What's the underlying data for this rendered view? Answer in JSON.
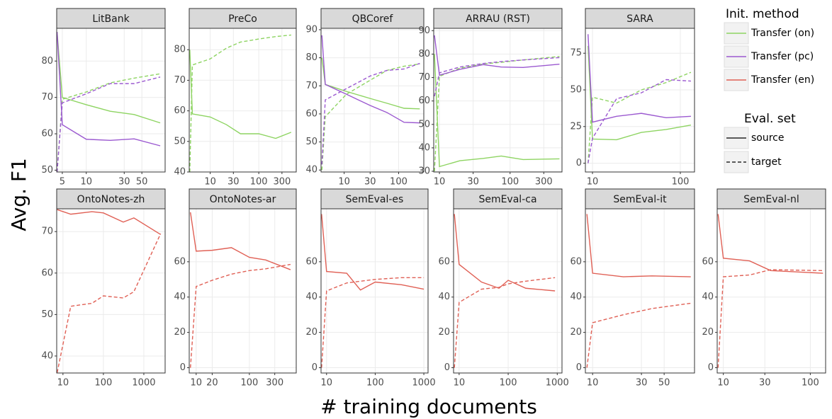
{
  "figure": {
    "ylabel": "Avg. F1",
    "xlabel": "# training documents",
    "legend": {
      "title": "Init. method",
      "items": [
        {
          "name": "Transfer (on)",
          "color": "#8ed462"
        },
        {
          "name": "Transfer (pc)",
          "color": "#9b59d0"
        },
        {
          "name": "Transfer (en)",
          "color": "#e06055"
        }
      ]
    },
    "legend2": {
      "title": "Eval. set",
      "items": [
        {
          "name": "source",
          "dashed": false
        },
        {
          "name": "target",
          "dashed": true
        }
      ]
    }
  },
  "chart_data": [
    {
      "type": "line",
      "title": "LitBank",
      "xlog": true,
      "xlim": [
        4.25,
        98
      ],
      "xticks": [
        5,
        10,
        30,
        50
      ],
      "ylim": [
        49.5,
        89
      ],
      "yticks": [
        50,
        60,
        70,
        80
      ],
      "grid": true,
      "x": [
        4.3,
        5,
        10,
        20,
        40,
        85
      ],
      "series": [
        {
          "color": "#8ed462",
          "dashed": false,
          "values": [
            88,
            70,
            68,
            66.2,
            65.3,
            63
          ]
        },
        {
          "color": "#8ed462",
          "dashed": true,
          "values": [
            49.5,
            69.5,
            71.5,
            74,
            75.3,
            76.5
          ]
        },
        {
          "color": "#9b59d0",
          "dashed": false,
          "values": [
            88,
            62.5,
            58.5,
            58.2,
            58.6,
            56.7
          ]
        },
        {
          "color": "#9b59d0",
          "dashed": true,
          "values": [
            49.5,
            68.5,
            71,
            73.8,
            73.8,
            75.6
          ]
        }
      ]
    },
    {
      "type": "line",
      "title": "PreCo",
      "xlog": true,
      "xlim": [
        3.7,
        590
      ],
      "xticks": [
        10,
        30,
        100,
        300
      ],
      "ylim": [
        40,
        87
      ],
      "yticks": [
        40,
        50,
        60,
        70,
        80
      ],
      "grid": true,
      "x": [
        3.8,
        4.3,
        10,
        21.5,
        42,
        100,
        223,
        464
      ],
      "series": [
        {
          "color": "#8ed462",
          "dashed": false,
          "values": [
            80,
            59,
            58,
            55.5,
            52.5,
            52.5,
            51,
            53
          ]
        },
        {
          "color": "#8ed462",
          "dashed": true,
          "values": [
            40,
            75,
            77,
            80.5,
            82.5,
            83.5,
            84.3,
            84.8
          ]
        }
      ]
    },
    {
      "type": "line",
      "title": "QBCoref",
      "xlog": true,
      "xlim": [
        3.76,
        290
      ],
      "xticks": [
        10,
        30,
        100
      ],
      "ylim": [
        39.3,
        90.5
      ],
      "yticks": [
        40,
        50,
        60,
        70,
        80,
        90
      ],
      "grid": true,
      "x": [
        3.9,
        4.5,
        11,
        30,
        61,
        126,
        245
      ],
      "series": [
        {
          "color": "#8ed462",
          "dashed": false,
          "values": [
            80,
            70.5,
            68,
            65.5,
            63.8,
            62,
            61.8
          ]
        },
        {
          "color": "#8ed462",
          "dashed": true,
          "values": [
            40,
            59,
            67,
            72,
            75.5,
            77,
            77.8
          ]
        },
        {
          "color": "#9b59d0",
          "dashed": false,
          "values": [
            88,
            70.5,
            67,
            63,
            60.5,
            57,
            56.8
          ]
        },
        {
          "color": "#9b59d0",
          "dashed": true,
          "values": [
            42,
            65,
            69,
            73.5,
            75.5,
            76,
            78
          ]
        }
      ]
    },
    {
      "type": "line",
      "title": "ARRAU (RST)",
      "xlog": true,
      "xlim": [
        8.3,
        543
      ],
      "xticks": [
        10,
        30,
        100,
        300
      ],
      "ylim": [
        29.7,
        91
      ],
      "yticks": [
        30,
        40,
        50,
        60,
        70,
        80,
        90
      ],
      "grid": true,
      "x": [
        8.5,
        10,
        19.5,
        41.6,
        75,
        153,
        500
      ],
      "series": [
        {
          "color": "#8ed462",
          "dashed": false,
          "values": [
            80,
            32,
            34.5,
            35.5,
            36.5,
            35,
            35.3
          ]
        },
        {
          "color": "#8ed462",
          "dashed": true,
          "values": [
            30,
            70.5,
            74,
            75.8,
            76.5,
            77.5,
            79
          ]
        },
        {
          "color": "#9b59d0",
          "dashed": false,
          "values": [
            88,
            71,
            73.5,
            75.5,
            74.5,
            74.3,
            75.7
          ]
        },
        {
          "color": "#9b59d0",
          "dashed": true,
          "values": [
            62,
            72,
            74.5,
            76,
            76.8,
            77.5,
            78.5
          ]
        }
      ]
    },
    {
      "type": "line",
      "title": "SARA",
      "xlog": true,
      "xlim": [
        8.3,
        145
      ],
      "xticks": [
        10,
        100
      ],
      "ylim": [
        -6,
        92
      ],
      "yticks": [
        0,
        25,
        50,
        75
      ],
      "grid": true,
      "x": [
        8.9,
        10,
        18.8,
        36,
        69,
        132
      ],
      "series": [
        {
          "color": "#8ed462",
          "dashed": false,
          "values": [
            80,
            16.5,
            16,
            21,
            23,
            26
          ]
        },
        {
          "color": "#8ed462",
          "dashed": true,
          "values": [
            0,
            45,
            41,
            50,
            55,
            62
          ]
        },
        {
          "color": "#9b59d0",
          "dashed": false,
          "values": [
            88,
            28,
            32,
            34,
            31,
            32
          ]
        },
        {
          "color": "#9b59d0",
          "dashed": true,
          "values": [
            0,
            17,
            44,
            48,
            57,
            56
          ]
        }
      ]
    },
    {
      "type": "line",
      "title": "OntoNotes-zh",
      "xlog": true,
      "xlim": [
        7,
        3360
      ],
      "xticks": [
        10,
        100,
        1000
      ],
      "ylim": [
        35.9,
        75.5
      ],
      "yticks": [
        40,
        50,
        60,
        70
      ],
      "grid": true,
      "x": [
        7.2,
        15.6,
        52,
        100,
        310,
        567,
        2600
      ],
      "series": [
        {
          "color": "#e06055",
          "dashed": false,
          "values": [
            75.3,
            74.2,
            74.8,
            74.5,
            72.3,
            73.3,
            69.3
          ]
        },
        {
          "color": "#e06055",
          "dashed": true,
          "values": [
            36,
            52,
            52.7,
            54.5,
            54,
            55.5,
            69.5
          ]
        }
      ]
    },
    {
      "type": "line",
      "title": "OntoNotes-ar",
      "xlog": true,
      "xlim": [
        7.4,
        760
      ],
      "xticks": [
        10,
        20,
        100,
        300
      ],
      "ylim": [
        -3,
        90
      ],
      "yticks": [
        0,
        20,
        40,
        60
      ],
      "grid": true,
      "x": [
        7.8,
        10,
        20,
        46,
        100,
        203,
        593
      ],
      "series": [
        {
          "color": "#e06055",
          "dashed": false,
          "values": [
            88,
            66,
            66.5,
            68,
            62.5,
            61,
            55.5
          ]
        },
        {
          "color": "#e06055",
          "dashed": true,
          "values": [
            0,
            46,
            49.5,
            53,
            55,
            56,
            58.5
          ]
        }
      ]
    },
    {
      "type": "line",
      "title": "SemEval-es",
      "xlog": true,
      "xlim": [
        7.7,
        1220
      ],
      "xticks": [
        10,
        100,
        1000
      ],
      "ylim": [
        -3,
        90
      ],
      "yticks": [
        0,
        20,
        40,
        60
      ],
      "grid": true,
      "x": [
        7.9,
        10,
        26,
        49.7,
        100,
        348,
        1000
      ],
      "series": [
        {
          "color": "#e06055",
          "dashed": false,
          "values": [
            87,
            54.5,
            53.5,
            44,
            48.5,
            47,
            44.5
          ]
        },
        {
          "color": "#e06055",
          "dashed": true,
          "values": [
            0,
            43.5,
            48,
            49,
            50,
            51,
            51
          ]
        }
      ]
    },
    {
      "type": "line",
      "title": "SemEval-ca",
      "xlog": true,
      "xlim": [
        7.7,
        1250
      ],
      "xticks": [
        10,
        100,
        1000
      ],
      "ylim": [
        -3,
        90
      ],
      "yticks": [
        0,
        20,
        40,
        60
      ],
      "grid": true,
      "x": [
        8,
        10,
        28.6,
        65,
        100,
        228,
        900
      ],
      "series": [
        {
          "color": "#e06055",
          "dashed": false,
          "values": [
            87,
            58.5,
            48.5,
            45,
            49.5,
            45,
            43.5
          ]
        },
        {
          "color": "#e06055",
          "dashed": true,
          "values": [
            0,
            37,
            44.5,
            45.5,
            47.5,
            49,
            51
          ]
        }
      ]
    },
    {
      "type": "line",
      "title": "SemEval-it",
      "xlog": true,
      "xlim": [
        8.5,
        99
      ],
      "xticks": [
        10,
        30,
        50
      ],
      "ylim": [
        -3,
        90
      ],
      "yticks": [
        0,
        20,
        40,
        60
      ],
      "grid": true,
      "x": [
        8.8,
        10,
        20,
        38,
        91
      ],
      "series": [
        {
          "color": "#e06055",
          "dashed": false,
          "values": [
            87,
            53.5,
            51.5,
            52,
            51.5
          ]
        },
        {
          "color": "#e06055",
          "dashed": true,
          "values": [
            0,
            25.5,
            30,
            33.5,
            36.5
          ]
        }
      ]
    },
    {
      "type": "line",
      "title": "SemEval-nl",
      "xlog": true,
      "xlim": [
        8.5,
        150
      ],
      "xticks": [
        10,
        30,
        100
      ],
      "ylim": [
        -3,
        90
      ],
      "yticks": [
        0,
        20,
        40,
        60
      ],
      "grid": true,
      "x": [
        8.7,
        10,
        20,
        35,
        140
      ],
      "series": [
        {
          "color": "#e06055",
          "dashed": false,
          "values": [
            87,
            62,
            60.5,
            55,
            53.5
          ]
        },
        {
          "color": "#e06055",
          "dashed": true,
          "values": [
            0,
            51.5,
            52.5,
            55.5,
            55
          ]
        }
      ]
    }
  ]
}
